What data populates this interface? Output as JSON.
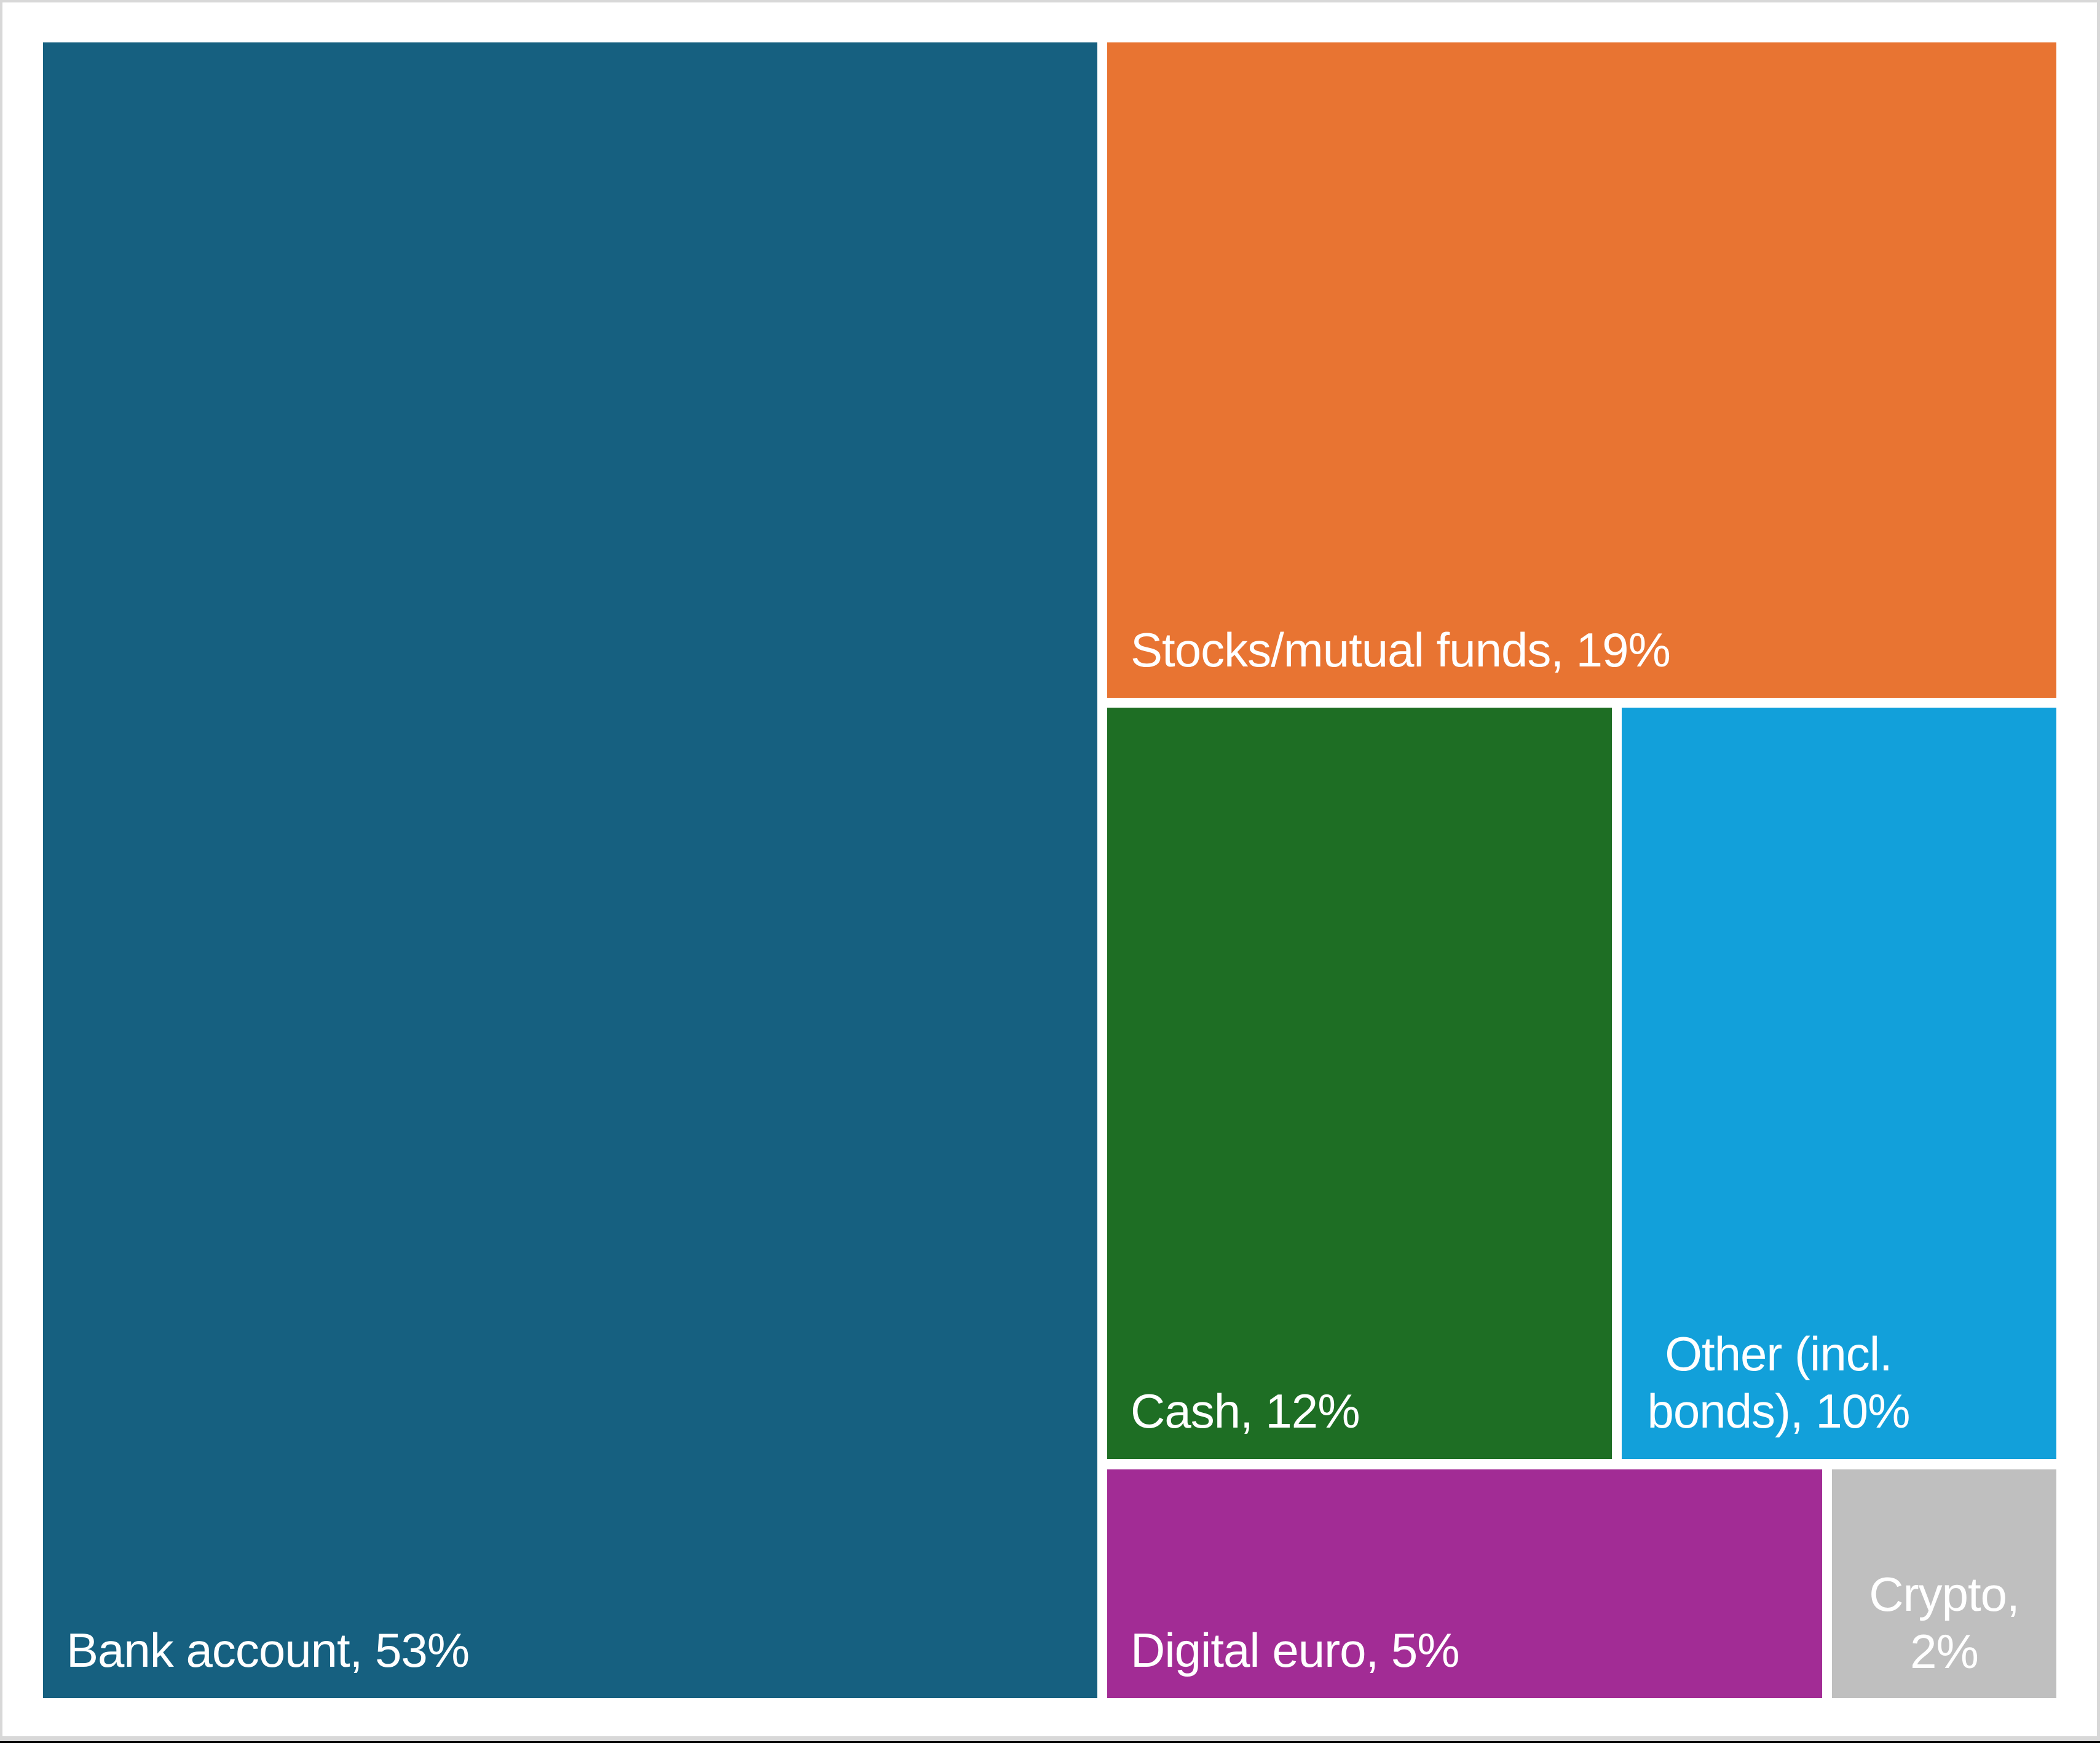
{
  "chart_data": {
    "type": "treemap",
    "title": "",
    "legend": "none",
    "layout_hint": "largest tile fills left column; remaining tiles tiled in right column top-to-bottom, largest first; labels bottom-left in white",
    "categories": [
      "Bank account",
      "Stocks/mutual funds",
      "Cash",
      "Other (incl. bonds)",
      "Digital euro",
      "Crypto"
    ],
    "values": [
      53,
      19,
      12,
      10,
      5,
      2
    ],
    "unit": "%",
    "items": [
      {
        "label": "Bank account",
        "value": 53,
        "text": "Bank account, 53%",
        "color": "#166080"
      },
      {
        "label": "Stocks/mutual funds",
        "value": 19,
        "text": "Stocks/mutual funds, 19%",
        "color": "#E87432"
      },
      {
        "label": "Cash",
        "value": 12,
        "text": "Cash, 12%",
        "color": "#1E6E24"
      },
      {
        "label": "Other (incl. bonds)",
        "value": 10,
        "text": "Other (incl. bonds), 10%",
        "color": "#12A0DA"
      },
      {
        "label": "Digital euro",
        "value": 5,
        "text": "Digital euro, 5%",
        "color": "#A22C95"
      },
      {
        "label": "Crypto",
        "value": 2,
        "text": "Crypto, 2%",
        "color": "#BFBFBF"
      }
    ],
    "label_text_color": "#FFFFFF"
  },
  "frame": {
    "edge_color": "#D8D8D8",
    "bottom_line_color": "#000000",
    "background": "#FFFFFF"
  }
}
